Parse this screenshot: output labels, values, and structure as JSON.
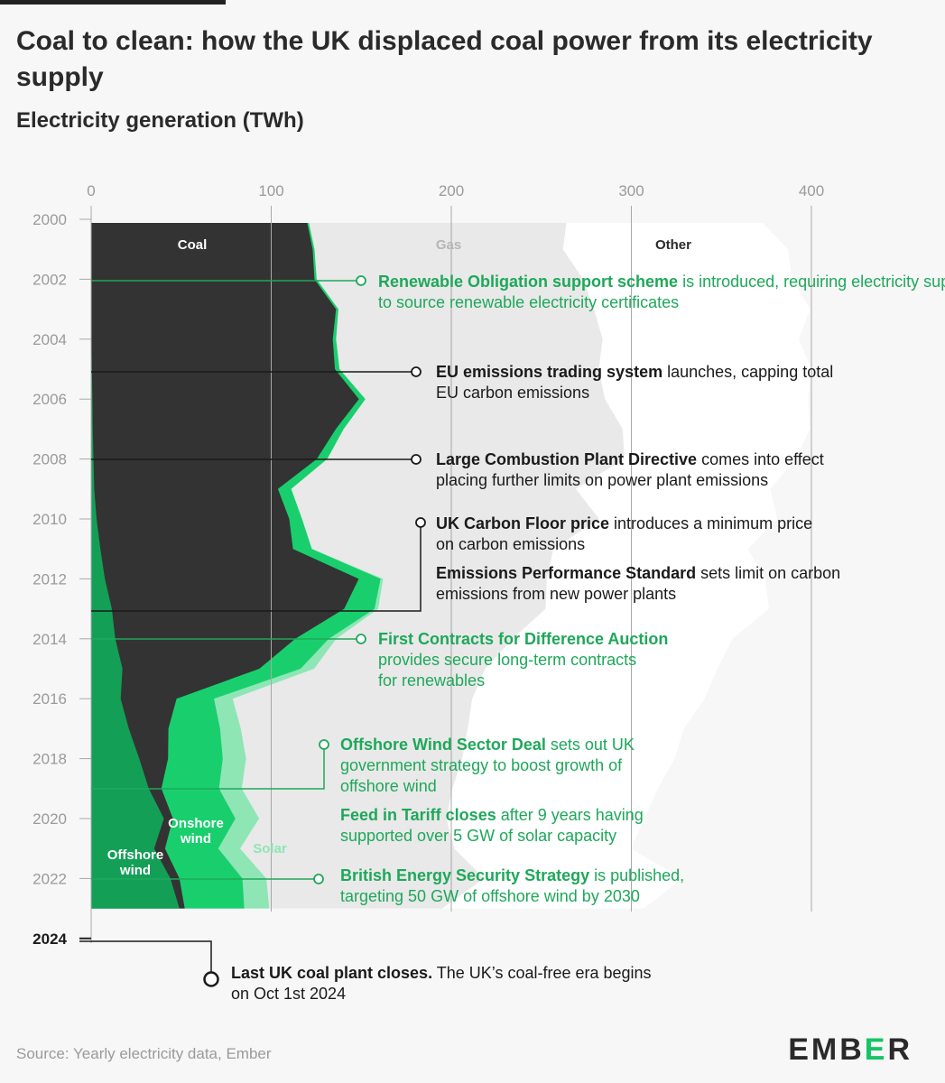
{
  "header": {
    "title": "Coal to clean: how the UK displaced coal power from its electricity supply",
    "subtitle": "Electricity generation (TWh)"
  },
  "footer": {
    "source": "Source: Yearly electricity data, Ember",
    "logo_prefix": "EMB",
    "logo_accent": "E",
    "logo_suffix": "R"
  },
  "colors": {
    "coal": "#333333",
    "offshore": "#149f57",
    "onshore": "#19cf6d",
    "solar": "#8ee6b5",
    "gas": "#e9e9e9",
    "other": "#ffffff",
    "green_text": "#1ea85a",
    "dark_text": "#1a1a1a",
    "axis": "#a8a8a8"
  },
  "chart_data": {
    "type": "area",
    "stacking": "stacked",
    "orientation": "horizontal",
    "xlim": [
      0,
      400
    ],
    "x_ticks": [
      0,
      100,
      200,
      300,
      400
    ],
    "y_ticks": [
      "2000",
      "2002",
      "2004",
      "2006",
      "2008",
      "2010",
      "2012",
      "2014",
      "2016",
      "2018",
      "2020",
      "2022",
      "2024"
    ],
    "years": [
      2000,
      2001,
      2002,
      2003,
      2004,
      2005,
      2006,
      2007,
      2008,
      2009,
      2010,
      2011,
      2012,
      2013,
      2014,
      2015,
      2016,
      2017,
      2018,
      2019,
      2020,
      2021,
      2022,
      2023
    ],
    "series": [
      {
        "name": "Offshore wind",
        "values": [
          0,
          0,
          0,
          0,
          0.2,
          0.4,
          0.7,
          0.9,
          1.3,
          1.7,
          3.0,
          5.1,
          7.6,
          11.5,
          13.4,
          17.4,
          16.4,
          20.9,
          26.7,
          32.0,
          40.4,
          35.0,
          44.0,
          49.0
        ]
      },
      {
        "name": "Coal",
        "values": [
          120,
          123,
          124,
          136,
          134,
          135,
          148,
          135,
          124,
          102,
          107,
          107,
          141,
          129,
          100,
          76,
          31,
          22,
          16,
          7,
          5,
          6,
          5,
          3
        ]
      },
      {
        "name": "Onshore wind",
        "values": [
          0.9,
          1.0,
          1.2,
          1.3,
          1.8,
          2.5,
          3.6,
          4.3,
          5.8,
          7.4,
          7.1,
          10.4,
          12.1,
          16.9,
          18.6,
          22.9,
          20.8,
          28.7,
          30.4,
          32.0,
          34.7,
          29.6,
          35.0,
          33.0
        ]
      },
      {
        "name": "Solar",
        "values": [
          0,
          0,
          0,
          0,
          0,
          0,
          0,
          0,
          0,
          0,
          0,
          0.2,
          1.4,
          2.0,
          4.1,
          7.5,
          10.4,
          11.5,
          12.9,
          12.6,
          13.2,
          12.1,
          13.3,
          13.9
        ]
      },
      {
        "name": "Gas",
        "values": [
          143,
          138,
          148,
          142,
          148,
          144,
          133,
          155,
          165,
          158,
          165,
          134,
          91,
          93,
          98,
          95,
          133,
          126,
          120,
          117,
          104,
          119,
          121,
          96
        ]
      },
      {
        "name": "Other",
        "values": [
          109,
          125,
          116,
          120,
          109,
          118,
          113,
          104,
          95,
          108,
          99,
          108,
          121,
          124,
          122,
          129,
          129,
          120,
          118,
          114,
          110,
          98,
          110,
          112
        ]
      }
    ],
    "series_labels": {
      "coal": "Coal",
      "gas": "Gas",
      "other": "Other",
      "onshore": "Onshore wind",
      "offshore": "Offshore wind",
      "solar": "Solar"
    },
    "annotations": [
      {
        "year": 2002.0,
        "color": "green",
        "bold": "Renewable Obligation support scheme",
        "text": "is introduced, requiring electricity suppliers to source renewable electricity certificates"
      },
      {
        "year": 2005.0,
        "color": "dark",
        "bold": "EU emissions trading system",
        "text": "launches, capping total EU carbon emissions"
      },
      {
        "year": 2008.0,
        "color": "dark",
        "bold": "Large Combustion Plant Directive",
        "text": "comes into effect placing further limits on power plant emissions"
      },
      {
        "year": 2013.0,
        "color": "dark",
        "bold": "UK Carbon Floor price",
        "text": "introduces a minimum price on carbon emissions"
      },
      {
        "year": 2013.0,
        "color": "dark",
        "bold": "Emissions Performance Standard",
        "text": "sets limit on carbon emissions from new power plants"
      },
      {
        "year": 2014.0,
        "color": "green",
        "bold": "First Contracts for Difference Auction",
        "text": "provides secure long-term contracts for renewables"
      },
      {
        "year": 2019.0,
        "color": "green",
        "bold": "Offshore Wind Sector Deal",
        "text": "sets out UK government strategy to boost growth of offshore wind"
      },
      {
        "year": 2019.0,
        "color": "green",
        "bold": "Feed in Tariff closes",
        "text": "after 9 years having supported over 5 GW of solar capacity"
      },
      {
        "year": 2022.0,
        "color": "green",
        "bold": "British Energy Security Strategy",
        "text": "is published, targeting  50 GW of offshore wind by 2030"
      },
      {
        "year": 2024.0,
        "color": "dark",
        "bold": "Last UK coal plant closes.",
        "text": "The UK’s coal-free era begins on Oct 1st 2024"
      }
    ]
  }
}
